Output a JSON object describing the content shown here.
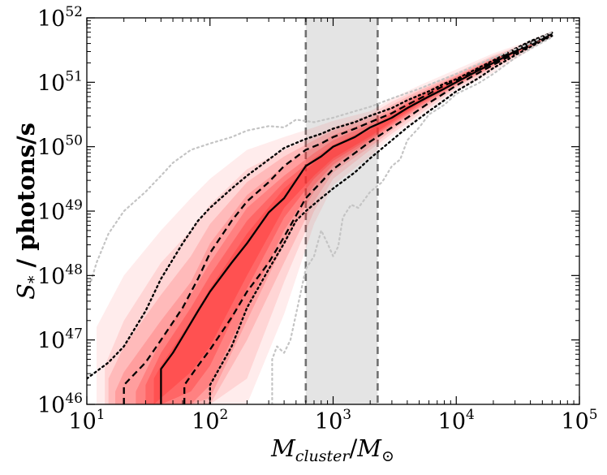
{
  "chart_data": {
    "type": "line",
    "title": "",
    "xlabel": {
      "base": "M",
      "sub1": "cluster",
      "sep": "/",
      "base2": "M",
      "sub2": "⊙"
    },
    "ylabel": {
      "base": "S",
      "sub": "*",
      "rest": " / photons/s"
    },
    "x_scale": "log",
    "y_scale": "log",
    "xlim": [
      10,
      100000
    ],
    "ylim": [
      1e+46,
      1e+52
    ],
    "x_ticks": [
      {
        "base": "10",
        "exp": "1"
      },
      {
        "base": "10",
        "exp": "2"
      },
      {
        "base": "10",
        "exp": "3"
      },
      {
        "base": "10",
        "exp": "4"
      },
      {
        "base": "10",
        "exp": "5"
      }
    ],
    "y_ticks": [
      {
        "base": "10",
        "exp": "46"
      },
      {
        "base": "10",
        "exp": "47"
      },
      {
        "base": "10",
        "exp": "48"
      },
      {
        "base": "10",
        "exp": "49"
      },
      {
        "base": "10",
        "exp": "50"
      },
      {
        "base": "10",
        "exp": "51"
      },
      {
        "base": "10",
        "exp": "52"
      }
    ],
    "shaded_band": {
      "x_range": [
        600,
        2300
      ],
      "color": "#e4e4e4",
      "edge_color": "#707070",
      "edge_style": "dashed"
    },
    "density_color": "#ff3030",
    "density_levels": [
      {
        "alpha": 0.09,
        "x": [
          12,
          20,
          40,
          70,
          100,
          200,
          400,
          700,
          1000,
          2000,
          3000,
          5000,
          10000,
          20000,
          40000,
          60000
        ],
        "lo": [
          46.0,
          46.0,
          46.0,
          46.0,
          46.0,
          46.0,
          47.4,
          48.8,
          49.4,
          49.85,
          50.15,
          50.45,
          50.85,
          51.15,
          51.5,
          51.7
        ],
        "hi": [
          47.2,
          48.0,
          48.7,
          49.2,
          49.5,
          49.95,
          50.15,
          50.3,
          50.4,
          50.55,
          50.75,
          50.95,
          51.2,
          51.45,
          51.65,
          51.8
        ]
      },
      {
        "alpha": 0.12,
        "x": [
          14,
          20,
          40,
          70,
          100,
          200,
          400,
          700,
          1000,
          2000,
          3000,
          5000,
          10000,
          20000,
          40000,
          60000
        ],
        "lo": [
          46.0,
          46.0,
          46.0,
          46.0,
          46.0,
          46.4,
          47.9,
          49.0,
          49.5,
          49.95,
          50.2,
          50.5,
          50.9,
          51.2,
          51.52,
          51.72
        ],
        "hi": [
          46.6,
          47.3,
          48.2,
          48.7,
          49.1,
          49.65,
          49.95,
          50.15,
          50.3,
          50.5,
          50.7,
          50.9,
          51.15,
          51.42,
          51.63,
          51.78
        ]
      },
      {
        "alpha": 0.16,
        "x": [
          15,
          20,
          40,
          70,
          100,
          200,
          400,
          700,
          1000,
          2000,
          3000,
          5000,
          10000,
          20000,
          40000,
          60000
        ],
        "lo": [
          46.0,
          46.0,
          46.0,
          46.0,
          46.0,
          47.0,
          48.2,
          49.15,
          49.6,
          50.0,
          50.25,
          50.55,
          50.93,
          51.23,
          51.54,
          51.73
        ],
        "hi": [
          46.4,
          46.9,
          47.7,
          48.3,
          48.8,
          49.45,
          49.85,
          50.1,
          50.25,
          50.45,
          50.65,
          50.87,
          51.12,
          51.4,
          51.62,
          51.77
        ]
      },
      {
        "alpha": 0.2,
        "x": [
          17,
          20,
          40,
          70,
          100,
          200,
          400,
          700,
          1000,
          2000,
          3000,
          5000,
          10000,
          20000,
          40000,
          60000
        ],
        "lo": [
          46.0,
          46.0,
          46.0,
          46.0,
          46.1,
          47.3,
          48.5,
          49.3,
          49.68,
          50.05,
          50.3,
          50.6,
          50.95,
          51.25,
          51.55,
          51.74
        ],
        "hi": [
          46.2,
          46.5,
          47.3,
          47.9,
          48.5,
          49.25,
          49.7,
          50.0,
          50.18,
          50.4,
          50.6,
          50.83,
          51.1,
          51.38,
          51.6,
          51.76
        ]
      },
      {
        "alpha": 0.26,
        "x": [
          25,
          40,
          70,
          100,
          200,
          400,
          700,
          1000,
          2000,
          3000,
          5000,
          10000,
          20000,
          40000,
          60000
        ],
        "lo": [
          46.0,
          46.0,
          46.0,
          46.3,
          47.5,
          48.7,
          49.4,
          49.72,
          50.1,
          50.33,
          50.62,
          50.97,
          51.27,
          51.56,
          51.74
        ],
        "hi": [
          46.2,
          47.0,
          47.7,
          48.2,
          49.05,
          49.55,
          49.9,
          50.1,
          50.35,
          50.55,
          50.8,
          51.08,
          51.36,
          51.59,
          51.76
        ]
      },
      {
        "alpha": 0.32,
        "x": [
          30,
          40,
          70,
          100,
          200,
          400,
          700,
          1000,
          2000,
          3000,
          5000,
          10000,
          20000,
          40000,
          60000
        ],
        "lo": [
          46.0,
          46.0,
          46.2,
          46.6,
          47.8,
          48.9,
          49.5,
          49.78,
          50.13,
          50.36,
          50.65,
          51.0,
          51.29,
          51.57,
          51.75
        ],
        "hi": [
          46.3,
          46.8,
          47.5,
          48.0,
          48.85,
          49.45,
          49.82,
          50.03,
          50.3,
          50.52,
          50.77,
          51.05,
          51.34,
          51.58,
          51.76
        ]
      },
      {
        "alpha": 0.38,
        "x": [
          35,
          40,
          70,
          100,
          200,
          400,
          700,
          1000,
          2000,
          3000,
          5000,
          10000,
          20000,
          40000,
          60000
        ],
        "lo": [
          46.0,
          46.1,
          46.5,
          46.9,
          48.0,
          49.05,
          49.55,
          49.82,
          50.16,
          50.39,
          50.68,
          51.02,
          51.3,
          51.58,
          51.75
        ],
        "hi": [
          46.4,
          46.6,
          47.3,
          47.8,
          48.65,
          49.35,
          49.75,
          49.98,
          50.26,
          50.48,
          50.74,
          51.03,
          51.32,
          51.58,
          51.75
        ]
      }
    ],
    "series": [
      {
        "style": "solid",
        "role": "median",
        "x": [
          40,
          40,
          50,
          60,
          80,
          100,
          150,
          200,
          300,
          400,
          600,
          800,
          1000,
          1500,
          2000,
          3000,
          4000,
          6000,
          8000,
          10000,
          15000,
          20000,
          30000,
          40000,
          60000
        ],
        "y": [
          46.0,
          46.55,
          46.8,
          47.05,
          47.45,
          47.75,
          48.2,
          48.5,
          48.98,
          49.2,
          49.7,
          49.85,
          50.0,
          50.15,
          50.3,
          50.45,
          50.6,
          50.78,
          50.9,
          51.0,
          51.18,
          51.3,
          51.48,
          51.6,
          51.75
        ]
      },
      {
        "style": "dashed",
        "role": "inner-upper",
        "x": [
          20,
          20,
          30,
          40,
          60,
          80,
          100,
          150,
          200,
          300,
          400,
          600,
          800,
          1000,
          1500,
          2000,
          3000,
          4000,
          6000,
          8000,
          10000,
          15000,
          20000,
          30000,
          40000,
          60000
        ],
        "y": [
          46.0,
          46.3,
          46.65,
          47.0,
          47.5,
          47.95,
          48.35,
          48.85,
          49.15,
          49.45,
          49.7,
          49.95,
          50.05,
          50.15,
          50.28,
          50.38,
          50.52,
          50.65,
          50.82,
          50.95,
          51.03,
          51.2,
          51.32,
          51.5,
          51.62,
          51.76
        ]
      },
      {
        "style": "dashed",
        "role": "inner-lower",
        "x": [
          62,
          62,
          80,
          100,
          150,
          200,
          300,
          400,
          600,
          800,
          1000,
          1500,
          2000,
          3000,
          4000,
          6000,
          8000,
          10000,
          15000,
          20000,
          30000,
          40000,
          60000
        ],
        "y": [
          46.0,
          46.3,
          46.6,
          46.85,
          47.35,
          47.75,
          48.2,
          48.6,
          49.2,
          49.45,
          49.65,
          49.9,
          50.08,
          50.3,
          50.45,
          50.68,
          50.83,
          50.95,
          51.14,
          51.27,
          51.45,
          51.57,
          51.73
        ]
      },
      {
        "style": "dotted",
        "role": "outer-upper",
        "x": [
          10,
          15,
          20,
          30,
          40,
          60,
          80,
          100,
          150,
          200,
          300,
          400,
          600,
          800,
          1000,
          1500,
          2000,
          3000,
          4000,
          6000,
          8000,
          10000,
          15000,
          20000,
          30000,
          40000,
          60000
        ],
        "y": [
          46.4,
          46.65,
          46.9,
          47.45,
          47.95,
          48.5,
          48.85,
          49.05,
          49.35,
          49.55,
          49.8,
          49.98,
          50.12,
          50.2,
          50.28,
          50.38,
          50.48,
          50.6,
          50.72,
          50.86,
          50.98,
          51.05,
          51.22,
          51.34,
          51.52,
          51.64,
          51.77
        ]
      },
      {
        "style": "dotted",
        "role": "outer-lower",
        "x": [
          100,
          100,
          150,
          200,
          300,
          400,
          500,
          600,
          800,
          1000,
          1500,
          2000,
          3000,
          4000,
          6000,
          8000,
          10000,
          15000,
          20000,
          30000,
          40000,
          60000
        ],
        "y": [
          46.0,
          46.3,
          46.9,
          47.5,
          48.1,
          48.5,
          48.85,
          49.0,
          49.2,
          49.35,
          49.6,
          49.82,
          50.1,
          50.3,
          50.55,
          50.72,
          50.86,
          51.06,
          51.22,
          51.42,
          51.55,
          51.72
        ]
      },
      {
        "style": "dotted-gray",
        "role": "extreme-upper",
        "x": [
          10,
          12,
          15,
          20,
          30,
          40,
          50,
          70,
          100,
          150,
          200,
          300,
          400,
          500,
          700,
          1000,
          1500,
          2000,
          3000,
          5000,
          10000,
          20000,
          40000,
          60000
        ],
        "y": [
          47.7,
          48.2,
          48.65,
          49.0,
          49.3,
          49.55,
          49.75,
          49.95,
          50.05,
          50.15,
          50.25,
          50.32,
          50.3,
          50.42,
          50.38,
          50.45,
          50.55,
          50.62,
          50.75,
          50.9,
          51.13,
          51.38,
          51.6,
          51.78
        ]
      },
      {
        "style": "dotted-gray",
        "role": "extreme-lower",
        "x": [
          320,
          320,
          350,
          400,
          450,
          500,
          600,
          700,
          800,
          900,
          1000,
          1100,
          1200,
          1400,
          1600,
          2000,
          2500,
          3000,
          3500,
          4000,
          5000,
          6000,
          8000,
          10000,
          15000,
          20000,
          30000,
          40000,
          60000
        ],
        "y": [
          46.0,
          46.7,
          46.9,
          46.8,
          47.0,
          47.4,
          48.1,
          48.3,
          48.7,
          48.5,
          48.3,
          48.45,
          48.9,
          49.1,
          49.05,
          49.3,
          49.45,
          49.7,
          49.8,
          50.1,
          50.3,
          50.5,
          50.65,
          50.82,
          50.98,
          51.13,
          51.38,
          51.52,
          51.7
        ]
      }
    ]
  }
}
